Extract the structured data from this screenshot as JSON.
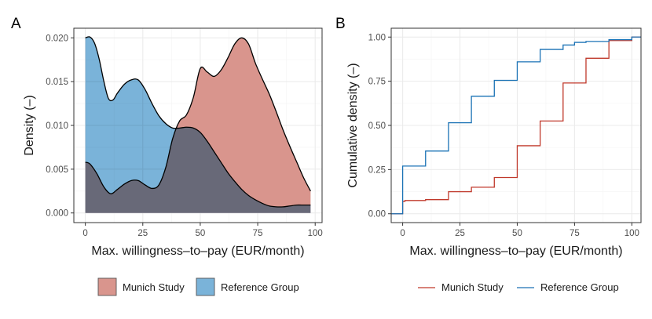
{
  "figure": {
    "colors": {
      "munich": "#c0392b",
      "munich_fill": "#d9958d",
      "reference": "#1a72b5",
      "reference_fill": "#7ab3d9",
      "overlap_fill": "#6980a0"
    },
    "legend_a": [
      {
        "key": "munich",
        "label": "Munich Study"
      },
      {
        "key": "reference",
        "label": "Reference Group"
      }
    ],
    "legend_b": [
      {
        "key": "munich",
        "label": "Munich Study"
      },
      {
        "key": "reference",
        "label": "Reference Group"
      }
    ]
  },
  "chart_data": [
    {
      "panel": "A",
      "type": "area",
      "xlabel": "Max. willingness–to–pay  (EUR/month)",
      "ylabel": "Density (–)",
      "xlim": [
        -5,
        103
      ],
      "ylim": [
        -0.0011,
        0.0211
      ],
      "xticks": [
        0,
        25,
        50,
        75,
        100
      ],
      "xtick_labels": [
        "0",
        "25",
        "50",
        "75",
        "100"
      ],
      "yticks": [
        0,
        0.005,
        0.01,
        0.015,
        0.02
      ],
      "ytick_labels": [
        "0.000",
        "0.005",
        "0.010",
        "0.015",
        "0.020"
      ],
      "series": [
        {
          "name": "Munich Study",
          "x": [
            0,
            2,
            5,
            8,
            11,
            14,
            17,
            20,
            23,
            26,
            29,
            32,
            35,
            38,
            41,
            44,
            47,
            50,
            53,
            56,
            59,
            62,
            65,
            68,
            71,
            74,
            77,
            80,
            83,
            86,
            89,
            92,
            95,
            98
          ],
          "y": [
            0.0058,
            0.0056,
            0.0045,
            0.003,
            0.0022,
            0.0027,
            0.0033,
            0.0037,
            0.0037,
            0.0032,
            0.0028,
            0.0032,
            0.0052,
            0.0085,
            0.0105,
            0.0112,
            0.0132,
            0.0165,
            0.0161,
            0.0156,
            0.0163,
            0.0177,
            0.0193,
            0.02,
            0.0193,
            0.0171,
            0.0153,
            0.0136,
            0.0116,
            0.0095,
            0.0076,
            0.0058,
            0.004,
            0.0025
          ]
        },
        {
          "name": "Reference Group",
          "x": [
            0,
            2,
            4,
            6,
            8,
            10,
            12,
            14,
            17,
            20,
            23,
            26,
            29,
            32,
            35,
            38,
            41,
            44,
            47,
            50,
            53,
            56,
            59,
            62,
            65,
            68,
            71,
            74,
            77,
            80,
            83,
            86,
            89,
            92,
            95,
            98
          ],
          "y": [
            0.02,
            0.0201,
            0.0194,
            0.0176,
            0.0151,
            0.0131,
            0.0129,
            0.0137,
            0.0147,
            0.0152,
            0.0152,
            0.0141,
            0.0125,
            0.0111,
            0.0102,
            0.0097,
            0.0097,
            0.0098,
            0.0097,
            0.0092,
            0.0082,
            0.007,
            0.0058,
            0.0046,
            0.0036,
            0.0027,
            0.002,
            0.0015,
            0.0011,
            0.0008,
            0.0007,
            0.0007,
            0.0008,
            0.0009,
            0.0009,
            0.0009
          ]
        }
      ]
    },
    {
      "panel": "B",
      "type": "line",
      "step": true,
      "xlabel": "Max. willingness–to–pay (EUR/month)",
      "ylabel": "Cumulative density (–)",
      "xlim": [
        -5,
        104
      ],
      "ylim": [
        -0.05,
        1.05
      ],
      "xticks": [
        0,
        25,
        50,
        75,
        100
      ],
      "xtick_labels": [
        "0",
        "25",
        "50",
        "75",
        "100"
      ],
      "yticks": [
        0,
        0.25,
        0.5,
        0.75,
        1.0
      ],
      "ytick_labels": [
        "0.00",
        "0.25",
        "0.50",
        "0.75",
        "1.00"
      ],
      "series": [
        {
          "name": "Munich Study",
          "x": [
            0,
            1,
            10,
            20,
            30,
            40,
            50,
            60,
            70,
            80,
            90,
            100
          ],
          "y": [
            0.07,
            0.075,
            0.08,
            0.125,
            0.15,
            0.205,
            0.385,
            0.525,
            0.74,
            0.88,
            0.98,
            1.0
          ]
        },
        {
          "name": "Reference Group",
          "x": [
            0,
            10,
            20,
            30,
            40,
            50,
            60,
            70,
            75,
            80,
            90,
            100
          ],
          "y": [
            0.27,
            0.355,
            0.515,
            0.665,
            0.755,
            0.86,
            0.93,
            0.955,
            0.97,
            0.975,
            0.985,
            1.0
          ]
        }
      ]
    }
  ]
}
